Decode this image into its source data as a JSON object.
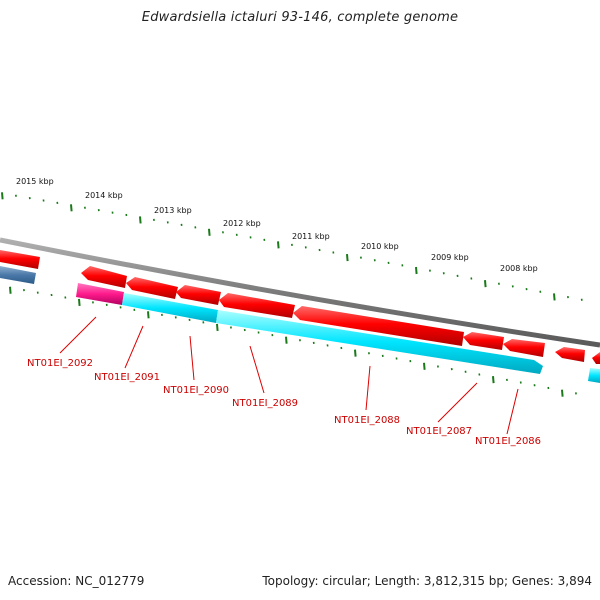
{
  "title": "Edwardsiella ictaluri 93-146, complete genome",
  "footer": {
    "accession": "Accession: NC_012779",
    "summary": "Topology: circular; Length: 3,812,315 bp; Genes: 3,894"
  },
  "scale_labels": [
    "2015 kbp",
    "2014 kbp",
    "2013 kbp",
    "2012 kbp",
    "2011 kbp",
    "2010 kbp",
    "2009 kbp",
    "2008 kbp"
  ],
  "gene_labels": [
    "NT01EI_2092",
    "NT01EI_2091",
    "NT01EI_2090",
    "NT01EI_2089",
    "NT01EI_2088",
    "NT01EI_2087",
    "NT01EI_2086"
  ],
  "colors": {
    "forward_gene": "#ff0000",
    "reverse_gene": "#00e5ff",
    "reverse_gene_alt": "#ff1a8c",
    "backbone": "#888888",
    "ticks": "#1a7a1a",
    "label": "#cc0000"
  }
}
